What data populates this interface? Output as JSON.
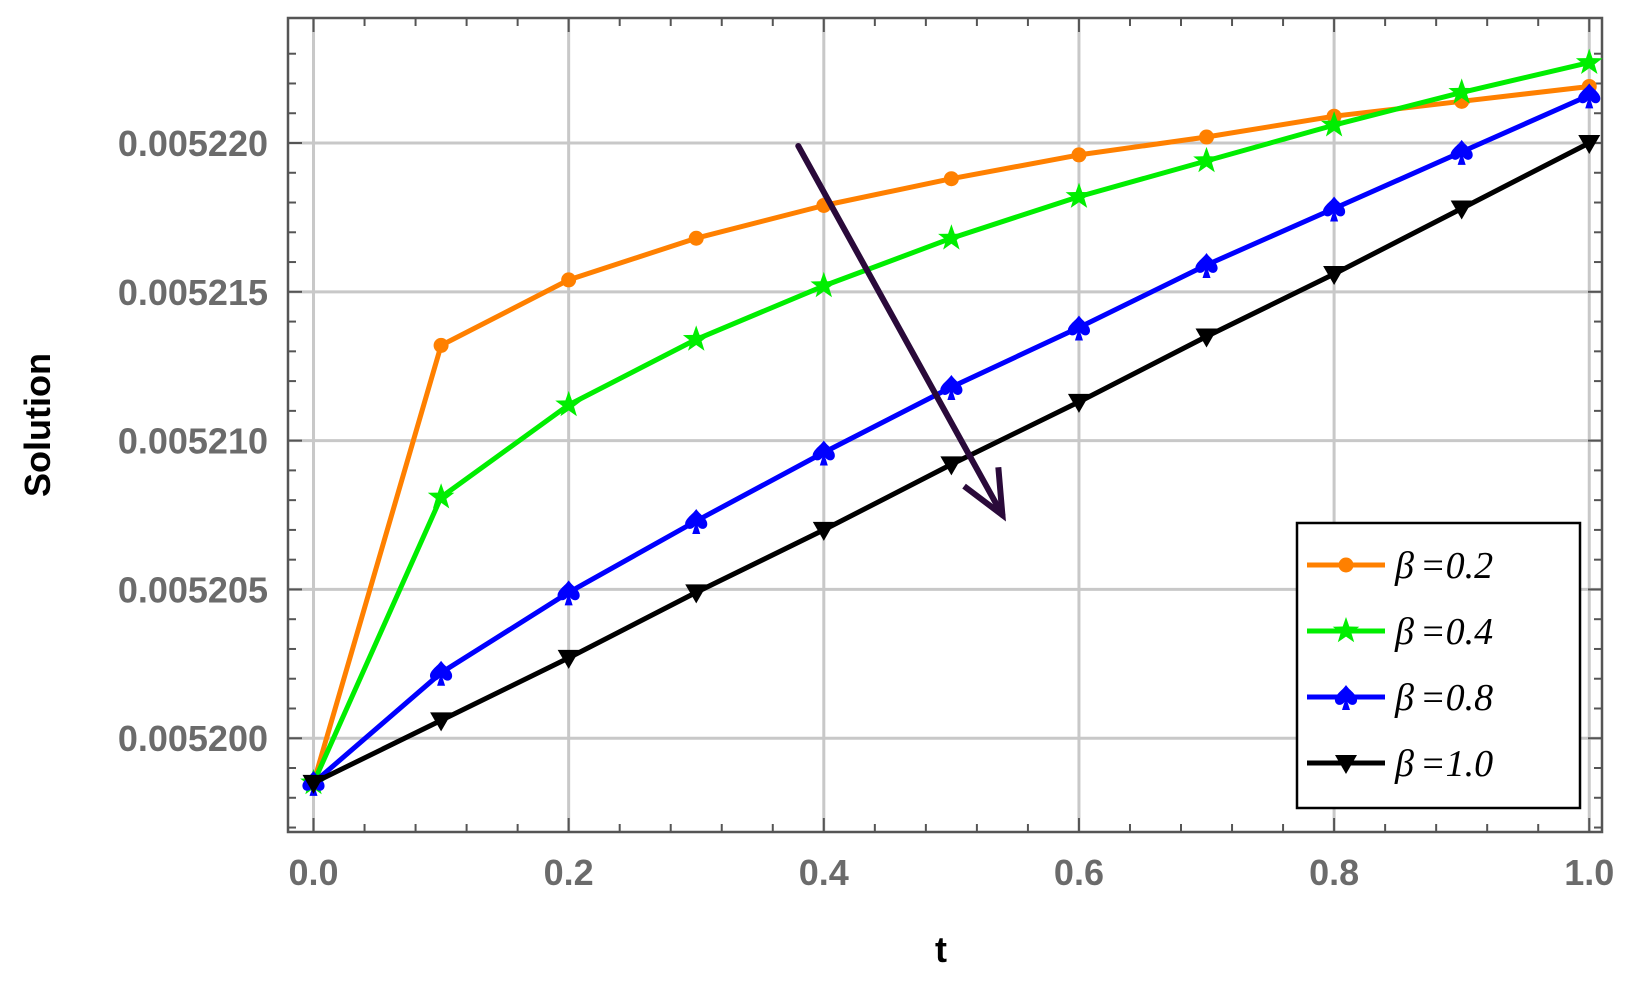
{
  "chart_data": {
    "type": "line",
    "title": "",
    "xlabel": "t",
    "ylabel": "Solution",
    "xlim": [
      -0.02,
      1.01
    ],
    "ylim": [
      0.00519685,
      0.0052242
    ],
    "grid": true,
    "legend_position": "bottom-right",
    "x": [
      0.0,
      0.1,
      0.2,
      0.3,
      0.4,
      0.5,
      0.6,
      0.7,
      0.8,
      0.9,
      1.0
    ],
    "x_ticks": [
      {
        "value": 0.0,
        "label": "0.0"
      },
      {
        "value": 0.2,
        "label": "0.2"
      },
      {
        "value": 0.4,
        "label": "0.4"
      },
      {
        "value": 0.6,
        "label": "0.6"
      },
      {
        "value": 0.8,
        "label": "0.8"
      },
      {
        "value": 1.0,
        "label": "1.0"
      }
    ],
    "y_ticks": [
      {
        "value": 0.0052,
        "label": "0.005200"
      },
      {
        "value": 0.005205,
        "label": "0.005205"
      },
      {
        "value": 0.00521,
        "label": "0.005210"
      },
      {
        "value": 0.005215,
        "label": "0.005215"
      },
      {
        "value": 0.00522,
        "label": "0.005220"
      }
    ],
    "series": [
      {
        "name": "β=0.2",
        "color": "#ff8000",
        "marker": "circle",
        "values": [
          0.0051985,
          0.0052132,
          0.0052154,
          0.0052168,
          0.0052179,
          0.0052188,
          0.0052196,
          0.0052202,
          0.0052209,
          0.0052214,
          0.0052219
        ]
      },
      {
        "name": "β=0.4",
        "color": "#00ee00",
        "marker": "star",
        "values": [
          0.0051985,
          0.0052081,
          0.0052112,
          0.0052134,
          0.0052152,
          0.0052168,
          0.0052182,
          0.0052194,
          0.0052206,
          0.0052217,
          0.0052227
        ]
      },
      {
        "name": "β=0.8",
        "color": "#0000ff",
        "marker": "spade",
        "values": [
          0.0051985,
          0.0052022,
          0.0052049,
          0.0052073,
          0.0052096,
          0.0052118,
          0.0052138,
          0.0052159,
          0.0052178,
          0.0052197,
          0.0052216
        ]
      },
      {
        "name": "β=1.0",
        "color": "#000000",
        "marker": "triangle-down",
        "values": [
          0.0051985,
          0.0052006,
          0.0052027,
          0.0052049,
          0.005207,
          0.0052092,
          0.0052113,
          0.0052135,
          0.0052156,
          0.0052178,
          0.00522
        ]
      }
    ],
    "annotation": {
      "type": "arrow",
      "color": "#2a0a3a",
      "from": [
        0.38,
        0.0052199
      ],
      "to": [
        0.54,
        0.0052075
      ]
    },
    "legend_entries": [
      {
        "symbol": "β",
        "text": "=0.2"
      },
      {
        "symbol": "β",
        "text": "=0.4"
      },
      {
        "symbol": "β",
        "text": "=0.8"
      },
      {
        "symbol": "β",
        "text": "=1.0"
      }
    ]
  }
}
